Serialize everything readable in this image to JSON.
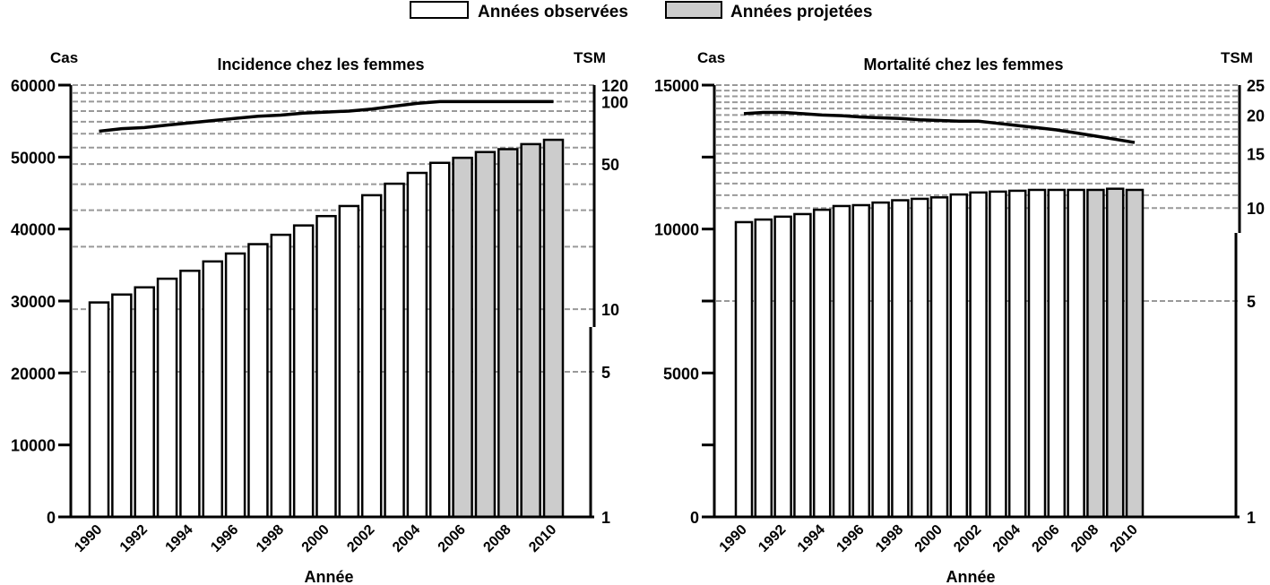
{
  "legend": {
    "items": [
      {
        "label": "Années observées",
        "color": "#ffffff"
      },
      {
        "label": "Années projetées",
        "color": "#cccccc"
      }
    ]
  },
  "chart_data": [
    {
      "type": "bar",
      "title": "Incidence chez les femmes",
      "xlabel": "Année",
      "ylabel": "Cas",
      "y2label": "TSM",
      "ylim": [
        0,
        60000
      ],
      "y_ticks": [
        0,
        10000,
        20000,
        30000,
        40000,
        50000,
        60000
      ],
      "y2_scale": "log",
      "y2lim": [
        1,
        120
      ],
      "y2_ticks": [
        1,
        5,
        10,
        50,
        100,
        120
      ],
      "y2_gridlines": [
        5,
        10,
        20,
        30,
        40,
        50,
        60,
        70,
        80,
        90,
        100,
        110,
        120
      ],
      "grid": true,
      "categories": [
        "1990",
        "1991",
        "1992",
        "1993",
        "1994",
        "1995",
        "1996",
        "1997",
        "1998",
        "1999",
        "2000",
        "2001",
        "2002",
        "2003",
        "2004",
        "2005",
        "2006",
        "2007",
        "2008",
        "2009",
        "2010"
      ],
      "x_tick_labels": [
        "1990",
        "1992",
        "1994",
        "1996",
        "1998",
        "2000",
        "2002",
        "2004",
        "2006",
        "2008",
        "2010"
      ],
      "series": [
        {
          "name": "Cas",
          "type": "bar",
          "axis": "left",
          "values": [
            29800,
            30900,
            31900,
            33100,
            34200,
            35500,
            36600,
            37900,
            39200,
            40500,
            41800,
            43200,
            44700,
            46300,
            47800,
            49200,
            49900,
            50700,
            51100,
            51800,
            52400
          ],
          "projected_from": "2006"
        },
        {
          "name": "TSM",
          "type": "line",
          "axis": "right",
          "values": [
            72,
            74,
            75,
            77,
            79,
            81,
            83,
            85,
            86,
            88,
            89,
            90,
            92,
            95,
            98,
            100,
            100,
            100,
            100,
            100,
            100
          ]
        }
      ]
    },
    {
      "type": "bar",
      "title": "Mortalité chez les femmes",
      "xlabel": "Année",
      "ylabel": "Cas",
      "y2label": "TSM",
      "ylim": [
        0,
        15000
      ],
      "y_ticks": [
        0,
        5000,
        10000,
        15000
      ],
      "y_minor_ticks": [
        2500,
        7500,
        12500
      ],
      "y2_scale": "log",
      "y2lim": [
        1,
        25
      ],
      "y2_ticks": [
        1,
        5,
        10,
        15,
        20,
        25
      ],
      "y2_gridlines": [
        5,
        10,
        11,
        12,
        13,
        14,
        15,
        16,
        17,
        18,
        19,
        20,
        21,
        22,
        23,
        24,
        25
      ],
      "grid": true,
      "categories": [
        "1990",
        "1991",
        "1992",
        "1993",
        "1994",
        "1995",
        "1996",
        "1997",
        "1998",
        "1999",
        "2000",
        "2001",
        "2002",
        "2003",
        "2004",
        "2005",
        "2006",
        "2007",
        "2008",
        "2009",
        "2010"
      ],
      "x_tick_labels": [
        "1990",
        "1992",
        "1994",
        "1996",
        "1998",
        "2000",
        "2002",
        "2004",
        "2006",
        "2008",
        "2010"
      ],
      "series": [
        {
          "name": "Cas",
          "type": "bar",
          "axis": "left",
          "values": [
            10240,
            10330,
            10430,
            10520,
            10670,
            10800,
            10830,
            10920,
            11000,
            11050,
            11100,
            11200,
            11270,
            11300,
            11330,
            11360,
            11360,
            11360,
            11360,
            11400,
            11360
          ],
          "projected_from": "2008"
        },
        {
          "name": "TSM",
          "type": "line",
          "axis": "right",
          "values": [
            20.2,
            20.4,
            20.4,
            20.2,
            20.0,
            19.9,
            19.7,
            19.6,
            19.5,
            19.3,
            19.2,
            19.1,
            19.1,
            18.8,
            18.5,
            18.2,
            17.9,
            17.5,
            17.1,
            16.7,
            16.3
          ]
        }
      ]
    }
  ]
}
